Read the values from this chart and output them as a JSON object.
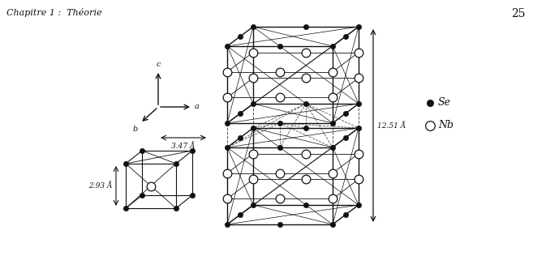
{
  "title_left": "Chapitre 1 :  Théorie",
  "page_number": "25",
  "bg_color": "#ffffff",
  "Se_color": "#111111",
  "Nb_color": "#ffffff",
  "edge_color": "#111111",
  "annotation_3_47": "3.47 Å",
  "annotation_2_93": "2.93 Å",
  "annotation_12_51": "12.51 Å",
  "legend_Se": "Se",
  "legend_Nb": "Nb"
}
